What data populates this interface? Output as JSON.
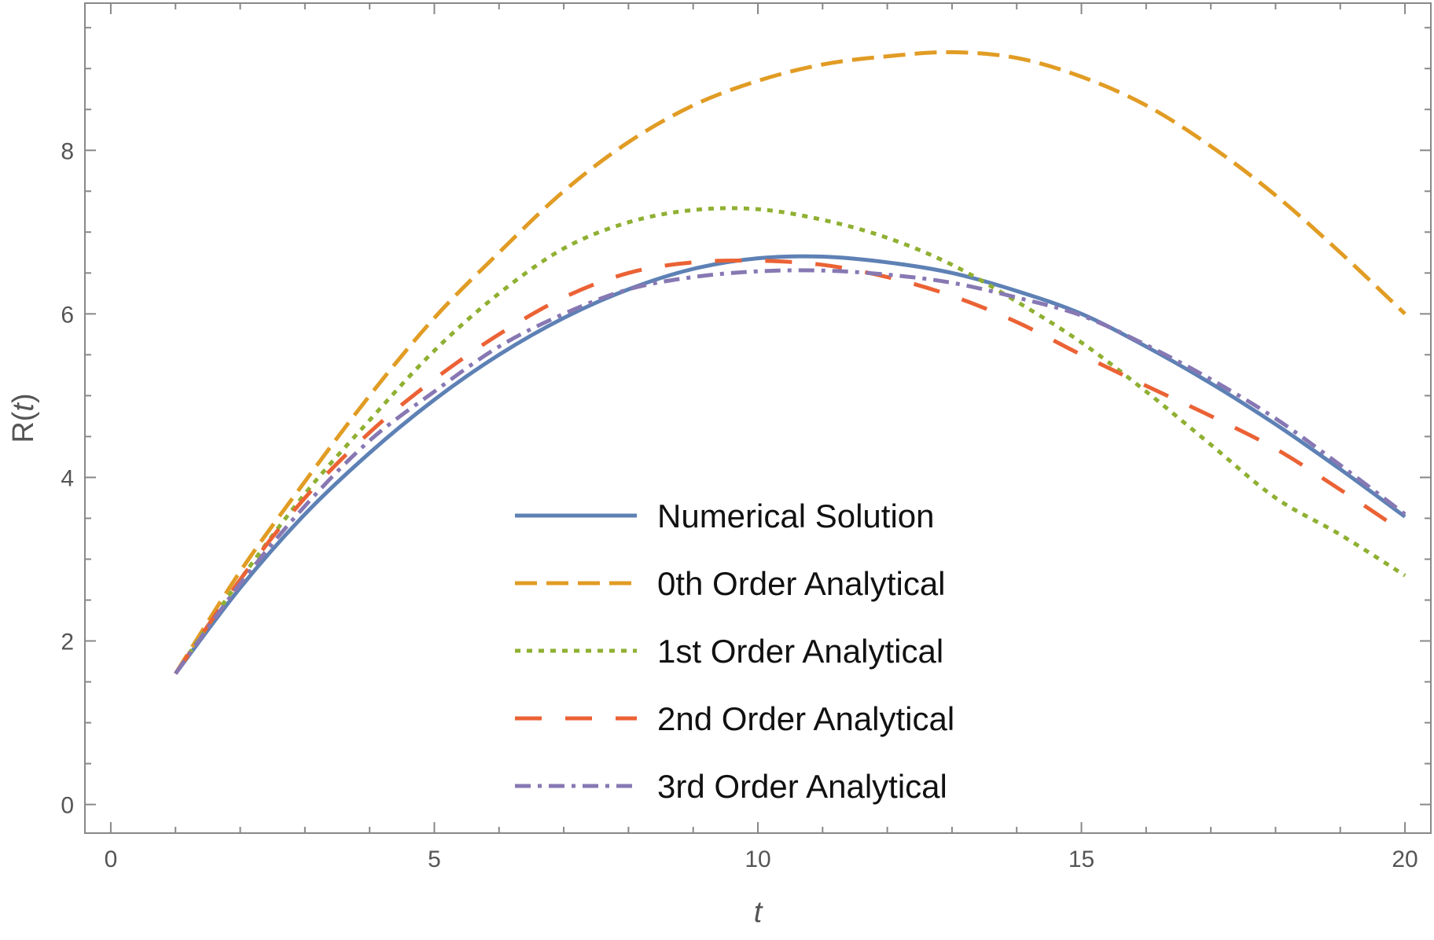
{
  "chart_data": {
    "type": "line",
    "title": "",
    "xlabel": "t",
    "ylabel_prefix": "R(",
    "ylabel_var": "t",
    "ylabel_suffix": ")",
    "xlim": [
      -0.4,
      20.4
    ],
    "ylim": [
      -0.35,
      9.8
    ],
    "x_ticks": [
      0,
      5,
      10,
      15,
      20
    ],
    "y_ticks": [
      0,
      2,
      4,
      6,
      8
    ],
    "x_ticks_minor": [
      1,
      2,
      3,
      4,
      6,
      7,
      8,
      9,
      11,
      12,
      13,
      14,
      16,
      17,
      18,
      19
    ],
    "y_ticks_minor": [
      0.5,
      1,
      1.5,
      2.5,
      3,
      3.5,
      4.5,
      5,
      5.5,
      6.5,
      7,
      7.5,
      8.5,
      9,
      9.5
    ],
    "grid": false,
    "legend_position": "bottom-center",
    "x": [
      1,
      2,
      3,
      4,
      5,
      6,
      7,
      8,
      9,
      10,
      11,
      12,
      13,
      14,
      15,
      16,
      17,
      18,
      19,
      20
    ],
    "series": [
      {
        "name": "Numerical Solution",
        "color": "#5e81b5",
        "dash": "solid",
        "values": [
          1.6,
          2.65,
          3.55,
          4.3,
          4.95,
          5.5,
          5.95,
          6.3,
          6.55,
          6.68,
          6.7,
          6.63,
          6.5,
          6.28,
          6.0,
          5.6,
          5.15,
          4.65,
          4.1,
          3.52
        ]
      },
      {
        "name": "0th Order Analytical",
        "color": "#e19c24",
        "dash": "long-dash",
        "values": [
          1.6,
          2.85,
          3.95,
          5.0,
          5.95,
          6.75,
          7.5,
          8.1,
          8.55,
          8.85,
          9.05,
          9.15,
          9.2,
          9.13,
          8.9,
          8.55,
          8.05,
          7.45,
          6.75,
          6.0
        ]
      },
      {
        "name": "1st Order Analytical",
        "color": "#8fb032",
        "dash": "dotted",
        "values": [
          1.6,
          2.75,
          3.8,
          4.7,
          5.55,
          6.25,
          6.8,
          7.12,
          7.27,
          7.28,
          7.15,
          6.93,
          6.6,
          6.15,
          5.65,
          5.05,
          4.4,
          3.75,
          3.3,
          2.8
        ]
      },
      {
        "name": "2nd Order Analytical",
        "color": "#eb6235",
        "dash": "dashed",
        "values": [
          1.6,
          2.75,
          3.75,
          4.55,
          5.2,
          5.75,
          6.2,
          6.5,
          6.63,
          6.65,
          6.6,
          6.45,
          6.22,
          5.9,
          5.5,
          5.12,
          4.75,
          4.35,
          3.85,
          3.32
        ]
      },
      {
        "name": "3rd Order Analytical",
        "color": "#8778b3",
        "dash": "dash-dot",
        "values": [
          1.6,
          2.7,
          3.65,
          4.45,
          5.05,
          5.6,
          6.0,
          6.3,
          6.45,
          6.52,
          6.53,
          6.48,
          6.38,
          6.2,
          5.98,
          5.62,
          5.2,
          4.72,
          4.15,
          3.55
        ]
      }
    ]
  }
}
